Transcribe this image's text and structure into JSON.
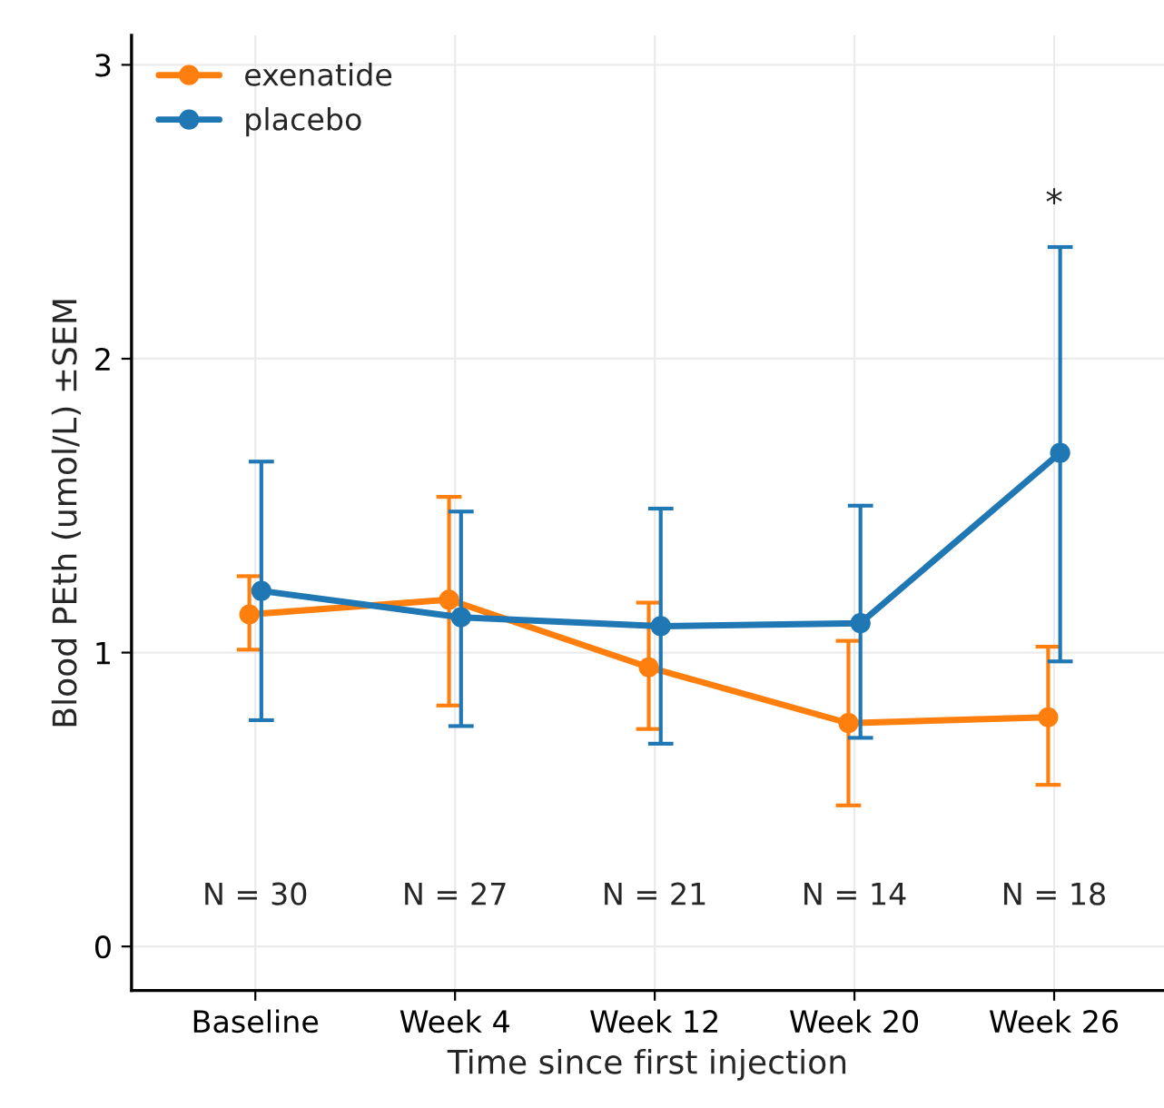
{
  "chart_data": {
    "type": "line",
    "xlabel": "Time since first injection",
    "ylabel": "Blood PEth (umol/L) ±SEM",
    "categories": [
      "Baseline",
      "Week 4",
      "Week 12",
      "Week 20",
      "Week 26"
    ],
    "series": [
      {
        "name": "exenatide",
        "color": "#ff7f0e",
        "values": [
          1.13,
          1.18,
          0.95,
          0.76,
          0.78
        ],
        "errors": [
          [
            1.01,
            1.26
          ],
          [
            0.82,
            1.53
          ],
          [
            0.74,
            1.17
          ],
          [
            0.48,
            1.04
          ],
          [
            0.55,
            1.02
          ]
        ]
      },
      {
        "name": "placebo",
        "color": "#1f77b4",
        "values": [
          1.21,
          1.12,
          1.09,
          1.1,
          1.68
        ],
        "errors": [
          [
            0.77,
            1.65
          ],
          [
            0.75,
            1.48
          ],
          [
            0.69,
            1.49
          ],
          [
            0.71,
            1.5
          ],
          [
            0.97,
            2.38
          ]
        ]
      }
    ],
    "ylim": [
      -0.15,
      3.1
    ],
    "yticks": [
      0,
      1,
      2,
      3
    ],
    "annotations": [
      "N = 30",
      "N = 27",
      "N = 21",
      "N = 14",
      "N = 18",
      "*"
    ],
    "grid": true,
    "legend": "top left",
    "marker": "circle",
    "line_style": "solid"
  }
}
